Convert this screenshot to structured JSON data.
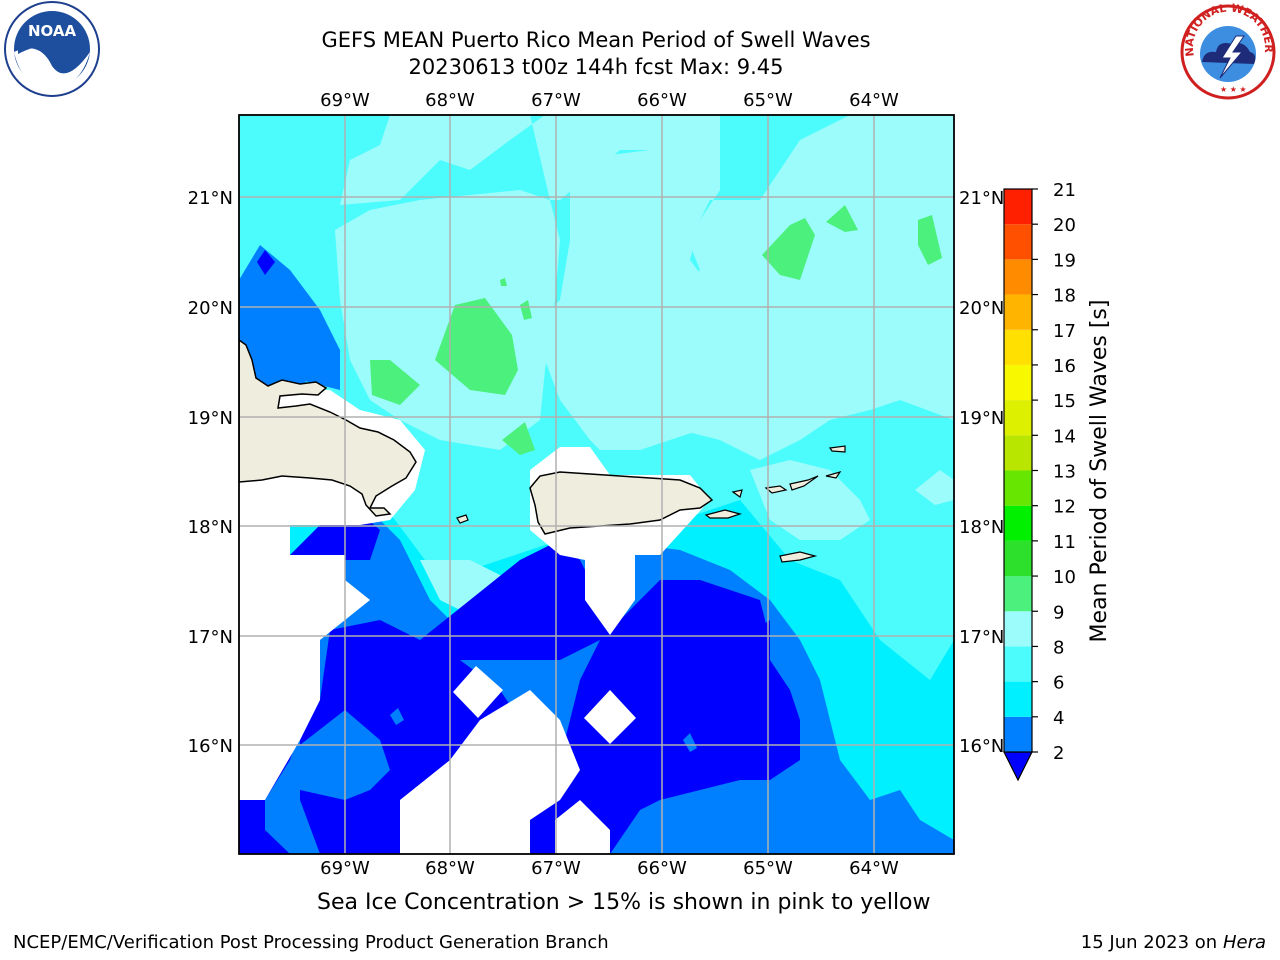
{
  "title": {
    "line1": "GEFS MEAN Puerto Rico Mean Period of Swell Waves",
    "line2": "20230613 t00z 144h fcst   Max: 9.45"
  },
  "map": {
    "lon_labels": [
      "69°W",
      "68°W",
      "67°W",
      "66°W",
      "65°W",
      "64°W"
    ],
    "lat_labels": [
      "21°N",
      "20°N",
      "19°N",
      "18°N",
      "17°N",
      "16°N"
    ],
    "colors": {
      "land": "#efedde",
      "no_data": "#ffffff",
      "grid": "#b0b0b0",
      "coast": "#000000"
    }
  },
  "colorbar": {
    "label": "Mean Period of Swell Waves [s]",
    "levels": [
      "2",
      "4",
      "6",
      "8",
      "9",
      "10",
      "11",
      "12",
      "13",
      "14",
      "15",
      "16",
      "17",
      "18",
      "19",
      "20",
      "21"
    ],
    "colors": [
      "#0000ff",
      "#0080ff",
      "#00f0ff",
      "#4cfcfc",
      "#9cfcfc",
      "#4cf07c",
      "#2ce02c",
      "#00f000",
      "#66e600",
      "#b8e600",
      "#dcf000",
      "#f8f800",
      "#ffe000",
      "#ffb400",
      "#ff8c00",
      "#ff5000",
      "#ff2000",
      "#ff0000"
    ]
  },
  "subtitle": "Sea Ice Concentration > 15% is shown in pink to yellow",
  "footer": {
    "left": "NCEP/EMC/Verification Post Processing Product Generation Branch",
    "date": "15 Jun 2023 on",
    "machine": "Hera"
  },
  "logos": {
    "noaa": "NOAA",
    "nws": "NATIONAL WEATHER SERVICE"
  }
}
